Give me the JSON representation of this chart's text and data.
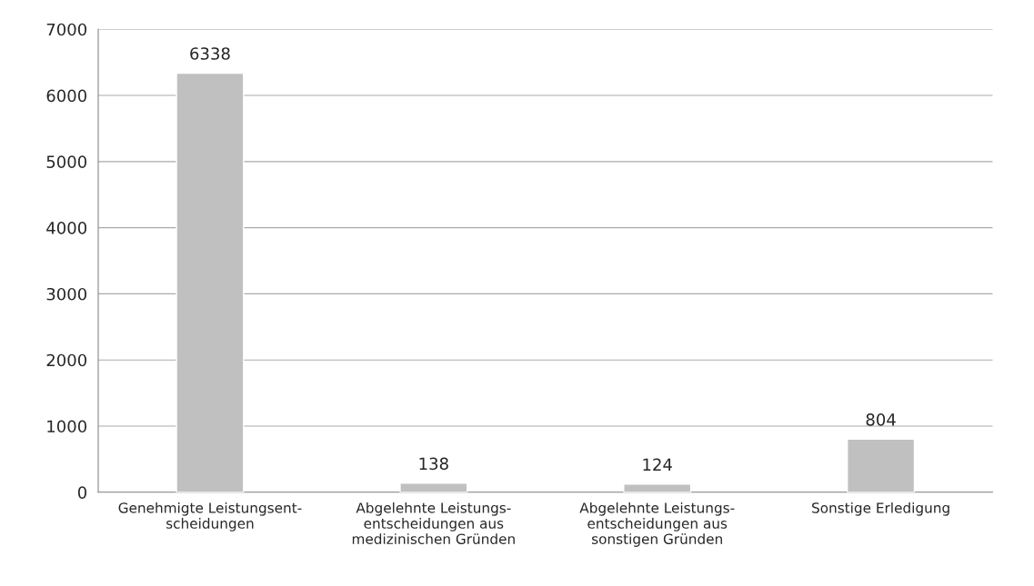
{
  "chart_data": {
    "type": "bar",
    "categories": [
      "Genehmigte Leistungsent-\nscheidungen",
      "Abgelehnte Leistungs-\nentscheidungen aus\nmedizinischen Gründen",
      "Abgelehnte Leistungs-\nentscheidungen aus\nsonstigen Gründen",
      "Sonstige Erledigung"
    ],
    "values": [
      6338,
      138,
      124,
      804
    ],
    "color": "#c0c0c0",
    "ylim": [
      0,
      7000
    ],
    "yticks": [
      0,
      1000,
      2000,
      3000,
      4000,
      5000,
      6000,
      7000
    ],
    "grid": "y",
    "data_labels": true
  }
}
